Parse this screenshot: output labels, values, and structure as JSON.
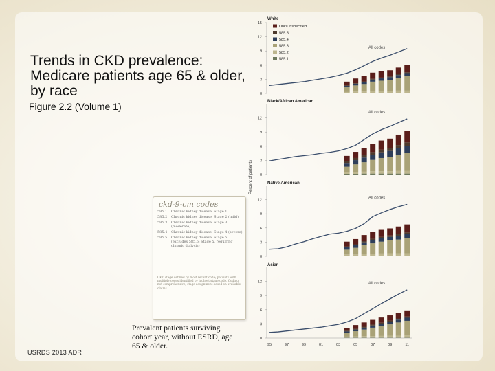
{
  "slide": {
    "title": "Trends in CKD prevalence: Medicare patients age 65 & older, by race",
    "subtitle": "Figure 2.2 (Volume 1)",
    "footer": "USRDS 2013 ADR",
    "caption": "Prevalent patients surviving cohort year, without ESRD, age 65 & older."
  },
  "codes_box": {
    "title": "ckd-9-cm codes",
    "rows": [
      {
        "code": "585.1",
        "desc": "Chronic kidney disease, Stage 1"
      },
      {
        "code": "585.2",
        "desc": "Chronic kidney disease, Stage 2 (mild)"
      },
      {
        "code": "585.3",
        "desc": "Chronic kidney disease, Stage 3 (moderate)"
      },
      {
        "code": "585.4",
        "desc": "Chronic kidney disease, Stage 4 (severe)"
      },
      {
        "code": "585.5",
        "desc": "Chronic kidney disease, Stage 5 (excludes 585.6: Stage 5, requiring chronic dialysis)"
      }
    ],
    "note": "CKD stage defined by most recent code; patients with multiple codes identified by highest stage code. Coding not comprehensive; stage assignment based on available claims."
  },
  "colors": {
    "line": "#3a4d6b",
    "s585_1": "#6f7a5e",
    "s585_2": "#bdb68e",
    "s585_3": "#a9a277",
    "s585_4": "#2e3e5a",
    "s585_5": "#4e3b2e",
    "unspec": "#5a1e1a"
  },
  "chart_data": {
    "type": "line+stacked-bar",
    "ylabel": "Percent of patients",
    "ylim": [
      0,
      15
    ],
    "yticks": [
      0,
      3,
      6,
      9,
      12,
      15
    ],
    "x_labels": [
      "95",
      "97",
      "99",
      "01",
      "03",
      "05",
      "07",
      "09",
      "11"
    ],
    "line_label": "All codes",
    "bar_years": [
      2004,
      2005,
      2006,
      2007,
      2008,
      2009,
      2010,
      2011
    ],
    "legend": [
      "Unk/Unspecified",
      "585.5",
      "585.4",
      "585.3",
      "585.2",
      "585.1"
    ],
    "panels": [
      {
        "name": "White",
        "line": {
          "x": [
            1995,
            1996,
            1997,
            1998,
            1999,
            2000,
            2001,
            2002,
            2003,
            2004,
            2005,
            2006,
            2007,
            2008,
            2009,
            2010,
            2011
          ],
          "y": [
            1.7,
            1.9,
            2.1,
            2.3,
            2.5,
            2.8,
            3.1,
            3.4,
            3.8,
            4.3,
            5.0,
            5.9,
            6.8,
            7.5,
            8.1,
            8.8,
            9.5
          ]
        },
        "bars": {
          "585.1": [
            0.1,
            0.1,
            0.1,
            0.1,
            0.1,
            0.1,
            0.1,
            0.1
          ],
          "585.2": [
            0.2,
            0.3,
            0.3,
            0.4,
            0.4,
            0.4,
            0.5,
            0.5
          ],
          "585.3": [
            1.0,
            1.3,
            1.6,
            2.0,
            2.2,
            2.4,
            2.7,
            3.1
          ],
          "585.4": [
            0.3,
            0.35,
            0.4,
            0.45,
            0.5,
            0.55,
            0.6,
            0.6
          ],
          "585.5": [
            0.1,
            0.12,
            0.14,
            0.15,
            0.16,
            0.17,
            0.18,
            0.18
          ],
          "unspec": [
            0.8,
            1.0,
            1.1,
            1.3,
            1.4,
            1.3,
            1.4,
            1.5
          ]
        }
      },
      {
        "name": "Black/African American",
        "line": {
          "x": [
            1995,
            1996,
            1997,
            1998,
            1999,
            2000,
            2001,
            2002,
            2003,
            2004,
            2005,
            2006,
            2007,
            2008,
            2009,
            2010,
            2011
          ],
          "y": [
            2.9,
            3.2,
            3.5,
            3.8,
            4.0,
            4.2,
            4.5,
            4.7,
            5.0,
            5.5,
            6.2,
            7.4,
            8.6,
            9.5,
            10.2,
            11.0,
            11.8
          ]
        },
        "bars": {
          "585.1": [
            0.15,
            0.15,
            0.2,
            0.2,
            0.2,
            0.2,
            0.2,
            0.2
          ],
          "585.2": [
            0.3,
            0.4,
            0.4,
            0.5,
            0.5,
            0.5,
            0.6,
            0.6
          ],
          "585.3": [
            1.2,
            1.6,
            2.0,
            2.4,
            2.8,
            3.0,
            3.4,
            3.8
          ],
          "585.4": [
            0.8,
            0.9,
            1.0,
            1.1,
            1.2,
            1.3,
            1.4,
            1.5
          ],
          "585.5": [
            0.4,
            0.45,
            0.5,
            0.55,
            0.6,
            0.6,
            0.65,
            0.7
          ],
          "unspec": [
            1.1,
            1.3,
            1.5,
            1.7,
            1.9,
            2.0,
            2.2,
            2.4
          ]
        }
      },
      {
        "name": "Native American",
        "line": {
          "x": [
            1995,
            1996,
            1997,
            1998,
            1999,
            2000,
            2001,
            2002,
            2003,
            2004,
            2005,
            2006,
            2007,
            2008,
            2009,
            2010,
            2011
          ],
          "y": [
            1.5,
            1.6,
            2.0,
            2.6,
            3.1,
            3.7,
            4.2,
            4.7,
            4.9,
            5.3,
            5.9,
            6.9,
            8.4,
            9.2,
            9.9,
            10.5,
            11.0
          ]
        },
        "bars": {
          "585.1": [
            0.1,
            0.1,
            0.15,
            0.15,
            0.15,
            0.15,
            0.15,
            0.15
          ],
          "585.2": [
            0.3,
            0.3,
            0.4,
            0.4,
            0.45,
            0.5,
            0.5,
            0.5
          ],
          "585.3": [
            1.0,
            1.4,
            1.8,
            2.2,
            2.5,
            2.7,
            2.9,
            3.2
          ],
          "585.4": [
            0.5,
            0.55,
            0.6,
            0.65,
            0.7,
            0.75,
            0.8,
            0.85
          ],
          "585.5": [
            0.2,
            0.2,
            0.25,
            0.3,
            0.3,
            0.3,
            0.35,
            0.35
          ],
          "unspec": [
            1.0,
            1.1,
            1.3,
            1.4,
            1.5,
            1.5,
            1.6,
            1.7
          ]
        }
      },
      {
        "name": "Asian",
        "line": {
          "x": [
            1995,
            1996,
            1997,
            1998,
            1999,
            2000,
            2001,
            2002,
            2003,
            2004,
            2005,
            2006,
            2007,
            2008,
            2009,
            2010,
            2011
          ],
          "y": [
            1.2,
            1.3,
            1.5,
            1.7,
            1.9,
            2.1,
            2.3,
            2.6,
            2.9,
            3.4,
            4.1,
            5.2,
            6.2,
            7.3,
            8.3,
            9.3,
            10.2
          ]
        },
        "bars": {
          "585.1": [
            0.1,
            0.1,
            0.1,
            0.1,
            0.1,
            0.1,
            0.1,
            0.1
          ],
          "585.2": [
            0.2,
            0.25,
            0.3,
            0.3,
            0.35,
            0.4,
            0.4,
            0.45
          ],
          "585.3": [
            0.8,
            1.1,
            1.4,
            1.8,
            2.1,
            2.4,
            2.8,
            3.1
          ],
          "585.4": [
            0.3,
            0.35,
            0.4,
            0.45,
            0.5,
            0.55,
            0.6,
            0.65
          ],
          "585.5": [
            0.15,
            0.15,
            0.2,
            0.2,
            0.2,
            0.25,
            0.25,
            0.25
          ],
          "unspec": [
            0.6,
            0.8,
            0.9,
            1.0,
            1.1,
            1.1,
            1.2,
            1.3
          ]
        }
      }
    ]
  }
}
